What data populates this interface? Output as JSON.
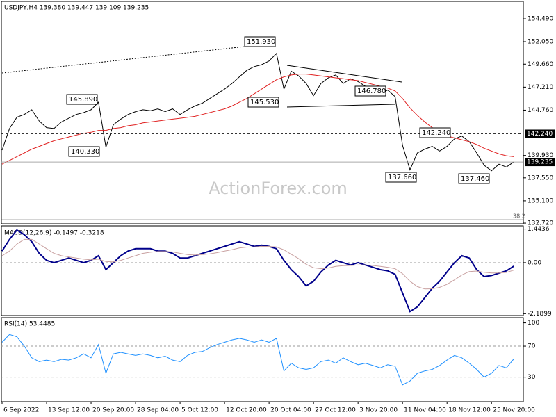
{
  "chart_data": [
    {
      "type": "line",
      "title": "USDJPY,H4 139.380 139.447 139.109 139.235",
      "watermark": "ActionForex.com",
      "series": [
        {
          "color": "#000000",
          "values": [
            140.5,
            142.8,
            144.0,
            144.3,
            144.8,
            143.6,
            142.9,
            142.8,
            143.5,
            143.9,
            144.3,
            144.5,
            144.8,
            145.6,
            140.8,
            143.2,
            143.8,
            144.3,
            144.6,
            144.8,
            144.7,
            144.9,
            144.6,
            144.9,
            144.3,
            144.8,
            145.2,
            145.5,
            146.0,
            146.5,
            147.0,
            147.6,
            148.3,
            149.0,
            149.4,
            149.6,
            150.0,
            150.8,
            147.0,
            148.9,
            148.4,
            147.6,
            146.3,
            147.6,
            148.2,
            148.5,
            147.6,
            148.1,
            147.8,
            147.3,
            146.8,
            146.5,
            146.9,
            146.2,
            141.0,
            138.4,
            140.2,
            140.6,
            140.9,
            140.4,
            140.9,
            141.7,
            142.0,
            141.4,
            140.2,
            138.9,
            138.3,
            139.0,
            138.7,
            139.235
          ]
        },
        {
          "color": "#e02020",
          "values": [
            139.0,
            139.4,
            139.8,
            140.2,
            140.6,
            140.9,
            141.2,
            141.5,
            141.7,
            141.9,
            142.1,
            142.3,
            142.4,
            142.6,
            142.6,
            142.8,
            142.9,
            143.1,
            143.2,
            143.4,
            143.5,
            143.6,
            143.7,
            143.8,
            143.9,
            144.0,
            144.1,
            144.3,
            144.5,
            144.7,
            144.9,
            145.2,
            145.6,
            146.0,
            146.5,
            147.0,
            147.5,
            148.0,
            148.3,
            148.5,
            148.6,
            148.6,
            148.5,
            148.4,
            148.3,
            148.2,
            148.1,
            148.0,
            147.9,
            147.7,
            147.5,
            147.3,
            147.1,
            146.8,
            146.0,
            145.0,
            144.2,
            143.5,
            142.9,
            142.4,
            142.0,
            141.8,
            141.6,
            141.4,
            141.1,
            140.7,
            140.4,
            140.1,
            139.9,
            139.8
          ]
        }
      ],
      "ylim": [
        132.65,
        156.27
      ],
      "yticks": [
        {
          "value": 154.49,
          "label": "154.490"
        },
        {
          "value": 152.05,
          "label": "152.050"
        },
        {
          "value": 149.66,
          "label": "149.660"
        },
        {
          "value": 147.21,
          "label": "147.210"
        },
        {
          "value": 144.76,
          "label": "144.760"
        },
        {
          "value": 139.93,
          "label": "139.930"
        },
        {
          "value": 137.55,
          "label": "137.550"
        },
        {
          "value": 135.1,
          "label": "135.100"
        },
        {
          "value": 132.72,
          "label": "132.720"
        }
      ],
      "level": {
        "value": 142.24,
        "label": "142.240"
      },
      "last_price": {
        "value": 139.235,
        "label": "139.235"
      },
      "annotations": [
        "151.930",
        "145.890",
        "140.330",
        "145.530",
        "146.780",
        "142.240",
        "137.660",
        "137.460",
        "38.2"
      ]
    },
    {
      "type": "line",
      "title": "MACD(12,26,9) -0.1497 -0.3218",
      "series": [
        {
          "color": "#00008b",
          "values": [
            0.5,
            1.0,
            1.4,
            1.2,
            0.9,
            0.4,
            0.1,
            0.0,
            0.1,
            0.2,
            0.1,
            0.0,
            0.1,
            0.3,
            -0.3,
            0.0,
            0.3,
            0.5,
            0.6,
            0.6,
            0.6,
            0.5,
            0.5,
            0.4,
            0.2,
            0.2,
            0.3,
            0.4,
            0.5,
            0.6,
            0.7,
            0.8,
            0.9,
            0.8,
            0.7,
            0.75,
            0.7,
            0.6,
            0.1,
            -0.3,
            -0.6,
            -1.0,
            -0.8,
            -0.4,
            -0.1,
            0.1,
            0.0,
            -0.1,
            0.0,
            -0.1,
            -0.2,
            -0.3,
            -0.35,
            -0.5,
            -1.3,
            -2.1,
            -1.9,
            -1.5,
            -1.1,
            -0.8,
            -0.4,
            0.0,
            0.3,
            0.2,
            -0.3,
            -0.6,
            -0.55,
            -0.45,
            -0.35,
            -0.1497
          ]
        },
        {
          "color": "#c8a0a0",
          "values": [
            0.3,
            0.5,
            0.8,
            1.0,
            1.0,
            0.8,
            0.6,
            0.4,
            0.3,
            0.25,
            0.2,
            0.15,
            0.12,
            0.15,
            0.05,
            0.03,
            0.1,
            0.2,
            0.3,
            0.4,
            0.45,
            0.48,
            0.48,
            0.46,
            0.4,
            0.35,
            0.33,
            0.35,
            0.38,
            0.43,
            0.5,
            0.56,
            0.63,
            0.67,
            0.68,
            0.7,
            0.7,
            0.68,
            0.55,
            0.36,
            0.17,
            -0.07,
            -0.22,
            -0.26,
            -0.23,
            -0.16,
            -0.13,
            -0.12,
            -0.1,
            -0.1,
            -0.12,
            -0.16,
            -0.2,
            -0.26,
            -0.47,
            -0.8,
            -1.03,
            -1.13,
            -1.12,
            -1.06,
            -0.93,
            -0.74,
            -0.53,
            -0.38,
            -0.36,
            -0.41,
            -0.44,
            -0.44,
            -0.42,
            -0.3218
          ]
        }
      ],
      "ylim": [
        -2.3,
        1.58
      ],
      "yticks": [
        1.4436,
        {
          "value": 0,
          "label": "0.00"
        },
        -2.1899
      ]
    },
    {
      "type": "line",
      "title": "RSI(14) 53.4485",
      "categories": [
        "6 Sep 2022",
        null,
        null,
        null,
        null,
        null,
        "13 Sep 12:00",
        null,
        null,
        null,
        null,
        null,
        "20 Sep 20:00",
        null,
        null,
        null,
        null,
        null,
        "28 Sep 04:00",
        null,
        null,
        null,
        null,
        null,
        "5 Oct 12:00",
        null,
        null,
        null,
        null,
        null,
        "12 Oct 20:00",
        null,
        null,
        null,
        null,
        null,
        "20 Oct 04:00",
        null,
        null,
        null,
        null,
        null,
        "27 Oct 12:00",
        null,
        null,
        null,
        null,
        null,
        "3 Nov 20:00",
        null,
        null,
        null,
        null,
        null,
        "11 Nov 04:00",
        null,
        null,
        null,
        null,
        null,
        "18 Nov 12:00",
        null,
        null,
        null,
        null,
        null,
        "25 Nov 20:00",
        null,
        null,
        null
      ],
      "series": [
        {
          "color": "#1e90ff",
          "values": [
            75,
            85,
            82,
            70,
            55,
            50,
            52,
            50,
            53,
            52,
            55,
            60,
            55,
            72,
            35,
            60,
            62,
            60,
            58,
            60,
            58,
            55,
            57,
            52,
            50,
            58,
            62,
            63,
            68,
            72,
            75,
            78,
            80,
            78,
            75,
            78,
            75,
            80,
            38,
            48,
            42,
            40,
            42,
            50,
            52,
            48,
            55,
            50,
            46,
            48,
            45,
            42,
            46,
            44,
            20,
            25,
            35,
            38,
            40,
            45,
            52,
            58,
            55,
            48,
            40,
            30,
            35,
            45,
            42,
            53.4485
          ]
        }
      ],
      "ylim": [
        -1.7,
        106.8
      ],
      "yticks": [
        30,
        70,
        100
      ]
    }
  ]
}
